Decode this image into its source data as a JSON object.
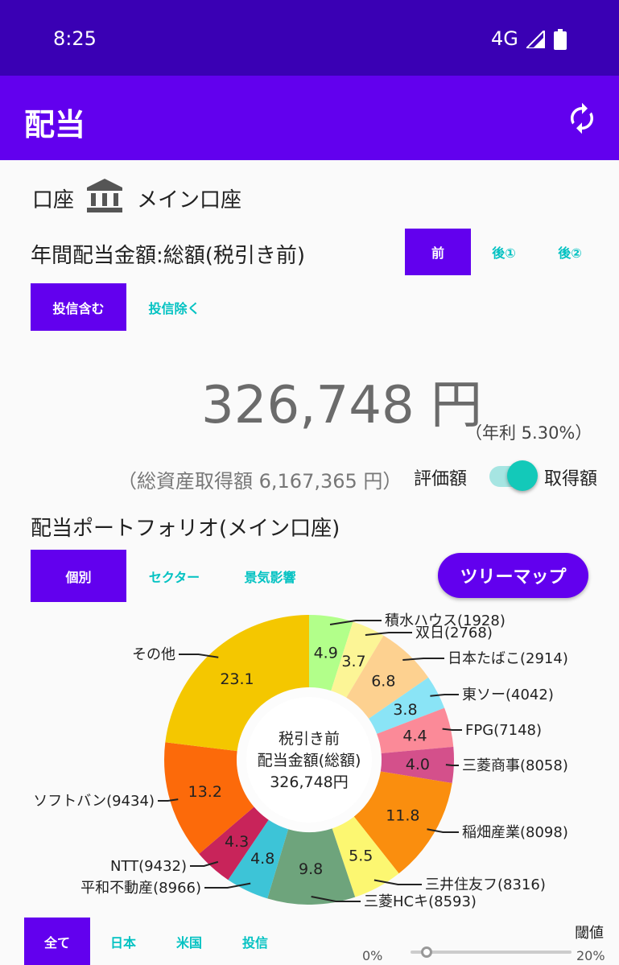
{
  "status": {
    "time": "8:25",
    "network": "4G"
  },
  "app": {
    "title": "配当"
  },
  "account": {
    "label": "口座",
    "name": "メイン口座"
  },
  "section": {
    "title": "年間配当金額:総額(税引き前)"
  },
  "tax_tabs": [
    {
      "label": "前",
      "selected": true
    },
    {
      "label": "後①",
      "selected": false
    },
    {
      "label": "後②",
      "selected": false
    }
  ],
  "fund_tabs": [
    {
      "label": "投信含む",
      "selected": true
    },
    {
      "label": "投信除く",
      "selected": false
    }
  ],
  "summary": {
    "amount": "326,748 円",
    "rate": "（年利 5.30%）",
    "total": "（総資産取得額 6,167,365 円）"
  },
  "toggle": {
    "left_label": "評価額",
    "right_label": "取得額",
    "on": true
  },
  "portfolio": {
    "title": "配当ポートフォリオ(メイン口座)"
  },
  "view_tabs": [
    {
      "label": "個別",
      "selected": true
    },
    {
      "label": "セクター",
      "selected": false
    },
    {
      "label": "景気影響",
      "selected": false
    }
  ],
  "treemap_label": "ツリーマップ",
  "chart_data": {
    "type": "pie",
    "center_text": [
      "税引き前",
      "配当金額(総額)",
      "326,748円"
    ],
    "slices": [
      {
        "name": "積水ハウス(1928)",
        "value": 4.9,
        "color": "#b2ff8a"
      },
      {
        "name": "双日(2768)",
        "value": 3.7,
        "color": "#fcf596"
      },
      {
        "name": "日本たばこ(2914)",
        "value": 6.8,
        "color": "#fdd190"
      },
      {
        "name": "東ソー(4042)",
        "value": 3.8,
        "color": "#8ae4f6"
      },
      {
        "name": "FPG(7148)",
        "value": 4.4,
        "color": "#fb8a98"
      },
      {
        "name": "三菱商事(8058)",
        "value": 4.0,
        "color": "#d4508b"
      },
      {
        "name": "稲畑産業(8098)",
        "value": 11.8,
        "color": "#fa8e0e"
      },
      {
        "name": "三井住友フ(8316)",
        "value": 5.5,
        "color": "#fcf771"
      },
      {
        "name": "三菱HCキ(8593)",
        "value": 9.8,
        "color": "#6ea47c"
      },
      {
        "name": "平和不動産(8966)",
        "value": 4.8,
        "color": "#3dc4d7"
      },
      {
        "name": "NTT(9432)",
        "value": 4.3,
        "color": "#c8245a"
      },
      {
        "name": "ソフトバン(9434)",
        "value": 13.2,
        "color": "#fc6a0a"
      },
      {
        "name": "その他",
        "value": 23.1,
        "color": "#f4c700"
      }
    ]
  },
  "filter_tabs": [
    {
      "label": "全て",
      "selected": true
    },
    {
      "label": "日本",
      "selected": false
    },
    {
      "label": "米国",
      "selected": false
    },
    {
      "label": "投信",
      "selected": false
    }
  ],
  "threshold": {
    "label": "閾値",
    "min": "0%",
    "max": "20%",
    "value": 0.05
  }
}
